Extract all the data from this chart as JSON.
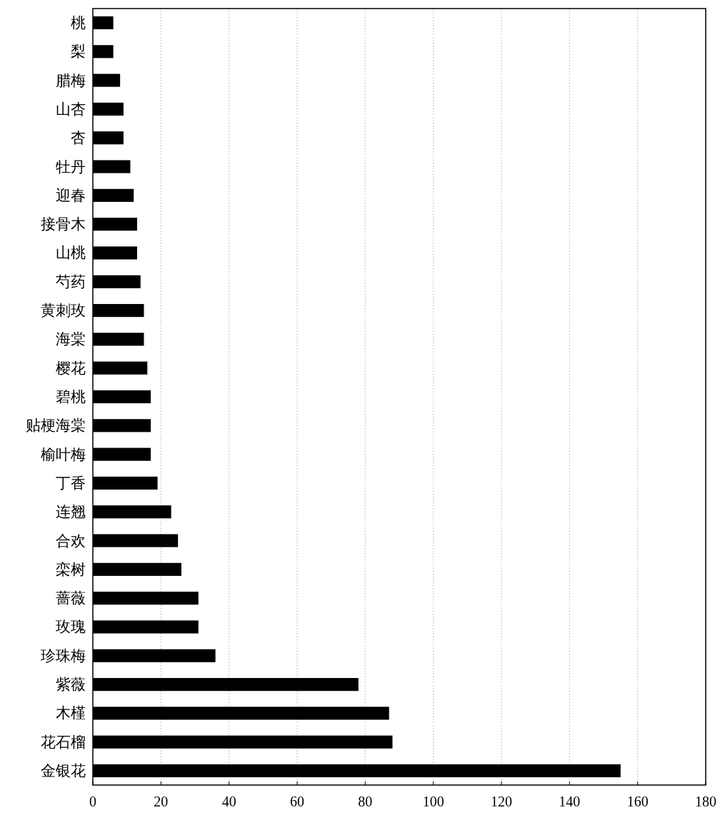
{
  "chart_data": {
    "type": "bar",
    "orientation": "horizontal",
    "categories": [
      "桃",
      "梨",
      "腊梅",
      "山杏",
      "杏",
      "牡丹",
      "迎春",
      "接骨木",
      "山桃",
      "芍药",
      "黄刺玫",
      "海棠",
      "樱花",
      "碧桃",
      "贴梗海棠",
      "榆叶梅",
      "丁香",
      "连翘",
      "合欢",
      "栾树",
      "蔷薇",
      "玫瑰",
      "珍珠梅",
      "紫薇",
      "木槿",
      "花石榴",
      "金银花"
    ],
    "values": [
      6,
      6,
      8,
      9,
      9,
      11,
      12,
      13,
      13,
      14,
      15,
      15,
      16,
      17,
      17,
      17,
      19,
      23,
      25,
      26,
      31,
      31,
      36,
      78,
      87,
      88,
      155
    ],
    "color": "#000000",
    "xlim": [
      0,
      180
    ],
    "xticks": [
      0,
      20,
      40,
      60,
      80,
      100,
      120,
      140,
      160,
      180
    ],
    "grid": "x"
  }
}
